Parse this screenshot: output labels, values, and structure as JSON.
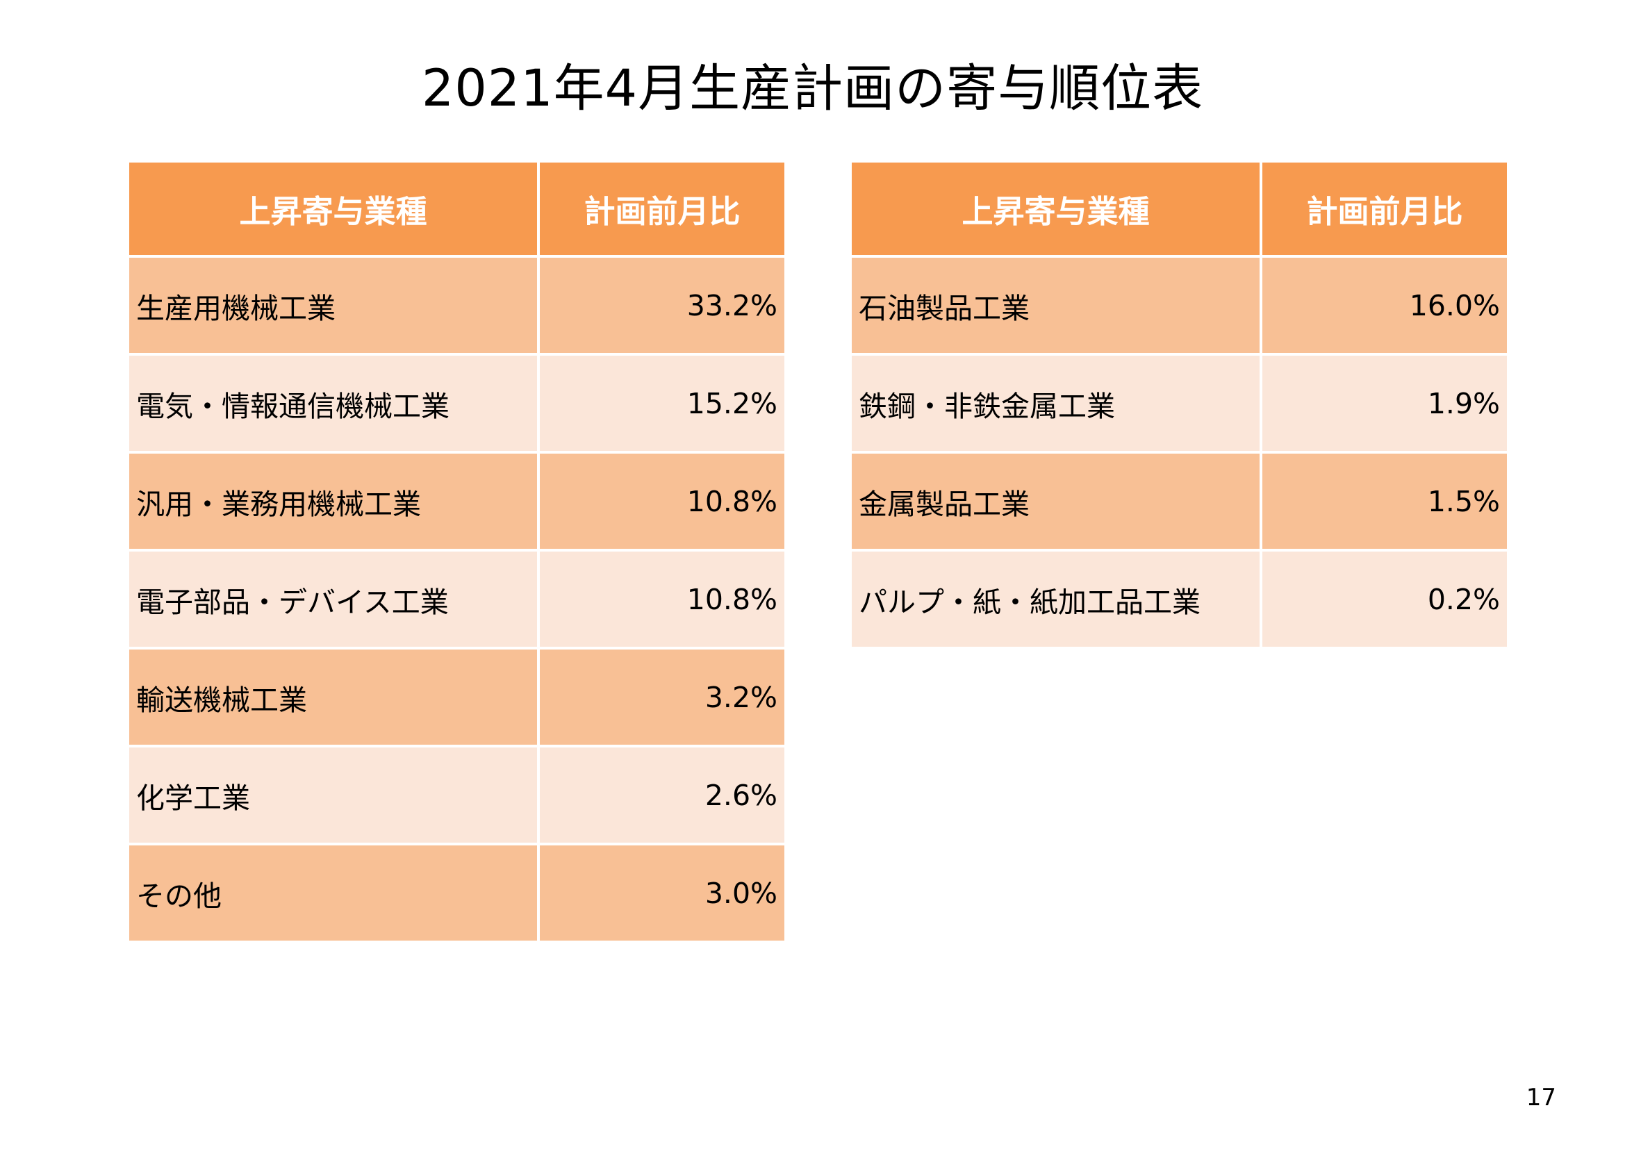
{
  "title": "2021年4月生産計画の寄与順位表",
  "left_table": {
    "headers": [
      "上昇寄与業種",
      "計画前月比"
    ],
    "rows": [
      {
        "industry": "生産用機械工業",
        "value": "33.2%"
      },
      {
        "industry": "電気・情報通信機械工業",
        "value": "15.2%"
      },
      {
        "industry": "汎用・業務用機械工業",
        "value": "10.8%"
      },
      {
        "industry": "電子部品・デバイス工業",
        "value": "10.8%"
      },
      {
        "industry": "輸送機械工業",
        "value": "3.2%"
      },
      {
        "industry": "化学工業",
        "value": "2.6%"
      },
      {
        "industry": "その他",
        "value": "3.0%"
      }
    ]
  },
  "right_table": {
    "headers": [
      "上昇寄与業種",
      "計画前月比"
    ],
    "rows": [
      {
        "industry": "石油製品工業",
        "value": "16.0%"
      },
      {
        "industry": "鉄鋼・非鉄金属工業",
        "value": "1.9%"
      },
      {
        "industry": "金属製品工業",
        "value": "1.5%"
      },
      {
        "industry": "パルプ・紙・紙加工品工業",
        "value": "0.2%"
      }
    ]
  },
  "colors": {
    "header_bg": "#f79a4f",
    "row_dark": "#f8c095",
    "row_light": "#fbe6d9"
  },
  "page_number": "17"
}
